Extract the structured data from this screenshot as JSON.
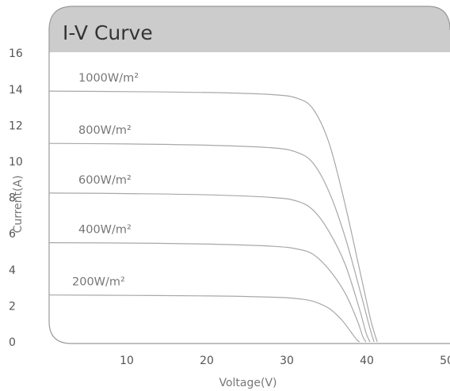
{
  "chart_data": {
    "type": "line",
    "title": "I-V Curve",
    "xlabel": "Voltage(V)",
    "ylabel": "Current(A)",
    "xlim": [
      0,
      50
    ],
    "ylim": [
      0,
      16
    ],
    "x_ticks": [
      "10",
      "20",
      "30",
      "40",
      "50"
    ],
    "y_ticks": [
      "0",
      "2",
      "4",
      "6",
      "8",
      "10",
      "12",
      "14",
      "16"
    ],
    "grid": false,
    "colors": {
      "curve": "#a8a8a8",
      "title_band": "#cccccc",
      "frame": "#999999"
    },
    "series": [
      {
        "name": "1000W/m²",
        "points": [
          [
            0,
            13.9
          ],
          [
            10,
            13.87
          ],
          [
            20,
            13.82
          ],
          [
            28,
            13.7
          ],
          [
            31,
            13.5
          ],
          [
            33,
            12.9
          ],
          [
            35,
            11.0
          ],
          [
            37,
            7.6
          ],
          [
            39,
            3.6
          ],
          [
            40.2,
            1.2
          ],
          [
            41.0,
            0
          ]
        ]
      },
      {
        "name": "800W/m²",
        "points": [
          [
            0,
            11.0
          ],
          [
            10,
            10.97
          ],
          [
            20,
            10.9
          ],
          [
            28,
            10.75
          ],
          [
            31,
            10.5
          ],
          [
            33,
            9.9
          ],
          [
            35,
            8.3
          ],
          [
            37,
            5.8
          ],
          [
            39,
            2.6
          ],
          [
            40.0,
            0.9
          ],
          [
            40.6,
            0
          ]
        ]
      },
      {
        "name": "600W/m²",
        "points": [
          [
            0,
            8.25
          ],
          [
            10,
            8.22
          ],
          [
            20,
            8.15
          ],
          [
            28,
            8.0
          ],
          [
            31,
            7.8
          ],
          [
            33,
            7.3
          ],
          [
            35,
            6.1
          ],
          [
            37,
            4.3
          ],
          [
            38.8,
            1.8
          ],
          [
            39.6,
            0.5
          ],
          [
            40.1,
            0
          ]
        ]
      },
      {
        "name": "400W/m²",
        "points": [
          [
            0,
            5.5
          ],
          [
            10,
            5.48
          ],
          [
            20,
            5.42
          ],
          [
            28,
            5.3
          ],
          [
            31,
            5.15
          ],
          [
            33,
            4.85
          ],
          [
            35,
            4.0
          ],
          [
            37,
            2.7
          ],
          [
            38.5,
            1.2
          ],
          [
            39.2,
            0.3
          ],
          [
            39.6,
            0
          ]
        ]
      },
      {
        "name": "200W/m²",
        "points": [
          [
            0,
            2.6
          ],
          [
            10,
            2.58
          ],
          [
            20,
            2.55
          ],
          [
            28,
            2.48
          ],
          [
            31,
            2.4
          ],
          [
            33,
            2.25
          ],
          [
            35,
            1.85
          ],
          [
            36.6,
            1.2
          ],
          [
            37.8,
            0.5
          ],
          [
            38.5,
            0.1
          ],
          [
            38.8,
            0
          ]
        ]
      }
    ]
  }
}
